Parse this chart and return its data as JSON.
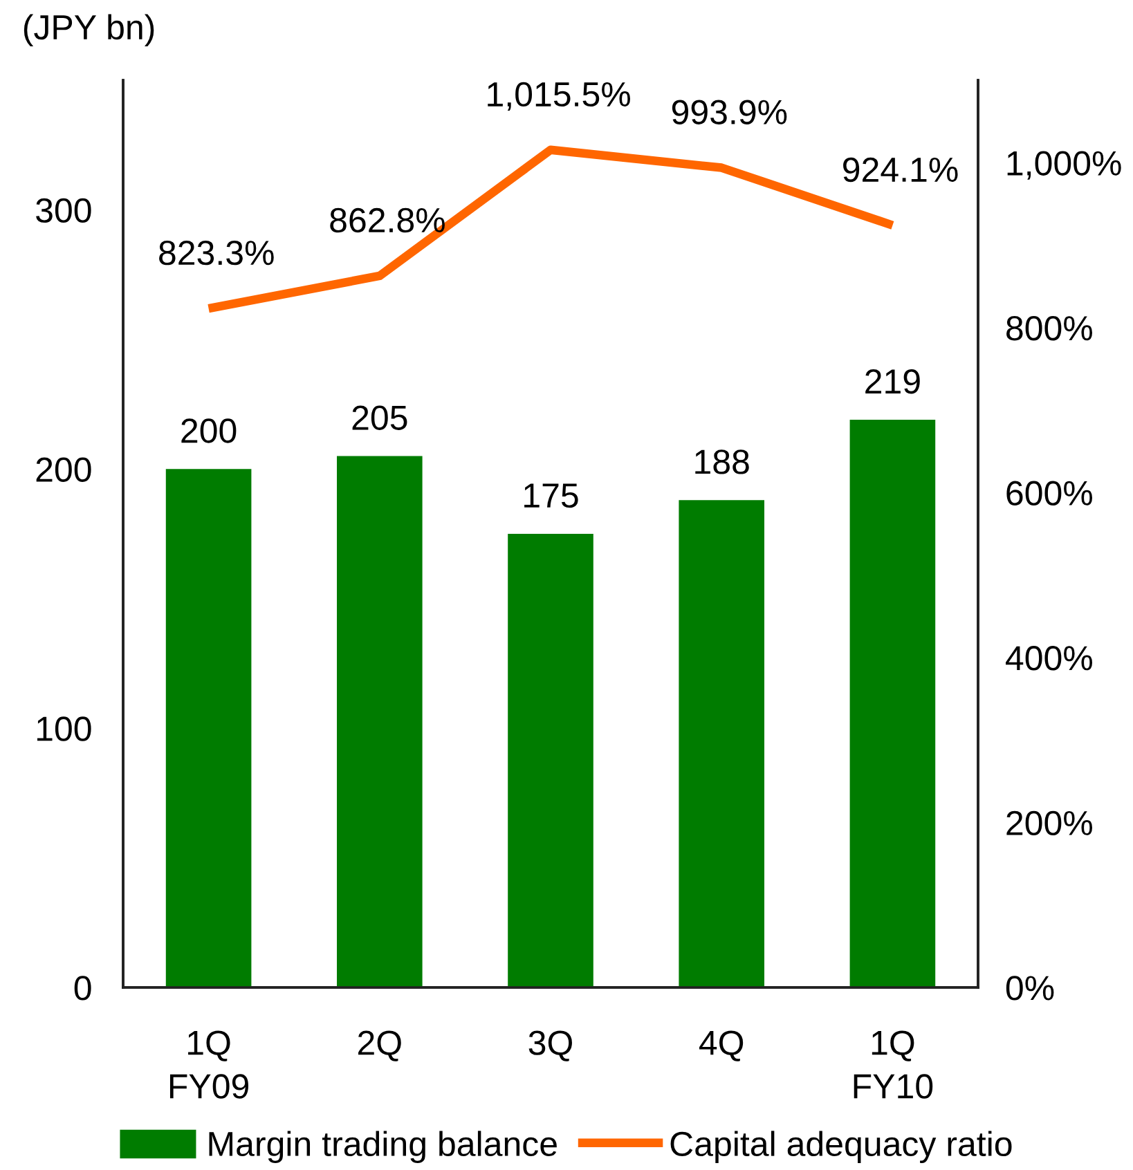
{
  "chart_data": {
    "type": "bar",
    "ylabel": "(JPY bn)",
    "categories": [
      "1Q\nFY09",
      "2Q",
      "3Q",
      "4Q",
      "1Q\nFY10"
    ],
    "series": [
      {
        "name": "Margin trading balance",
        "color": "#007c00",
        "values": [
          200,
          205,
          175,
          188,
          219
        ],
        "value_labels": [
          "200",
          "205",
          "175",
          "188",
          "219"
        ]
      },
      {
        "name": "Capital adequacy ratio",
        "type": "line",
        "axis": "y2",
        "color": "#ff6600",
        "values": [
          823.3,
          862.8,
          1015.5,
          993.9,
          924.1
        ],
        "value_labels": [
          "823.3%",
          "862.8%",
          "1,015.5%",
          "993.9%",
          "924.1%"
        ]
      }
    ],
    "ylim": [
      0,
      350
    ],
    "yticks": [
      0,
      100,
      200,
      300
    ],
    "y2lim": [
      0,
      1100
    ],
    "y2ticks": [
      {
        "value": 0,
        "label": "0%"
      },
      {
        "value": 200,
        "label": "200%"
      },
      {
        "value": 400,
        "label": "400%"
      },
      {
        "value": 600,
        "label": "600%"
      },
      {
        "value": 800,
        "label": "800%"
      },
      {
        "value": 1000,
        "label": "1,000%"
      }
    ],
    "legend": "bottom"
  }
}
